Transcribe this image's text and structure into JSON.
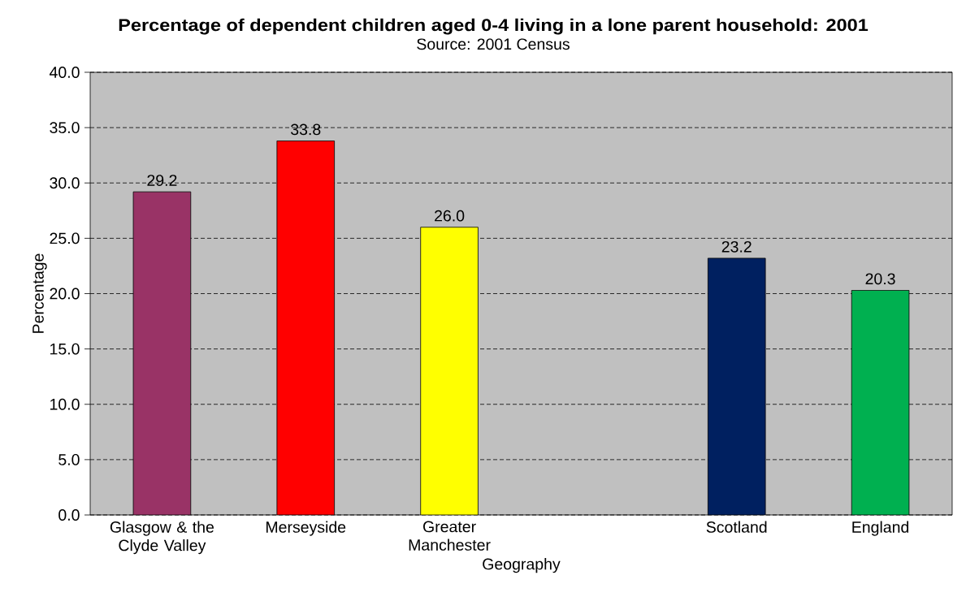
{
  "chart_data": {
    "type": "bar",
    "title": "Percentage of dependent children aged 0-4 living in a lone parent household: 2001",
    "annotations": [
      "Source: 2001 Census"
    ],
    "xlabel": "Geography",
    "ylabel": "Percentage",
    "categories": [
      "Glasgow & the Clyde Valley",
      "Merseyside",
      "Greater Manchester",
      null,
      "Scotland",
      "England"
    ],
    "values": [
      29.2,
      33.8,
      26.0,
      null,
      23.2,
      20.3
    ],
    "colors": [
      "#993366",
      "#ff0000",
      "#ffff00",
      null,
      "#002060",
      "#00b050"
    ],
    "value_labels": [
      "29.2",
      "33.8",
      "26.0",
      null,
      "23.2",
      "20.3"
    ],
    "ylim": [
      0,
      40
    ],
    "yticks": [
      {
        "value": 0,
        "label": "0.0"
      },
      {
        "value": 5,
        "label": "5.0"
      },
      {
        "value": 10,
        "label": "10.0"
      },
      {
        "value": 15,
        "label": "15.0"
      },
      {
        "value": 20,
        "label": "20.0"
      },
      {
        "value": 25,
        "label": "25.0"
      },
      {
        "value": 30,
        "label": "30.0"
      },
      {
        "value": 35,
        "label": "35.0"
      },
      {
        "value": 40,
        "label": "40.0"
      }
    ],
    "grid": "y"
  }
}
